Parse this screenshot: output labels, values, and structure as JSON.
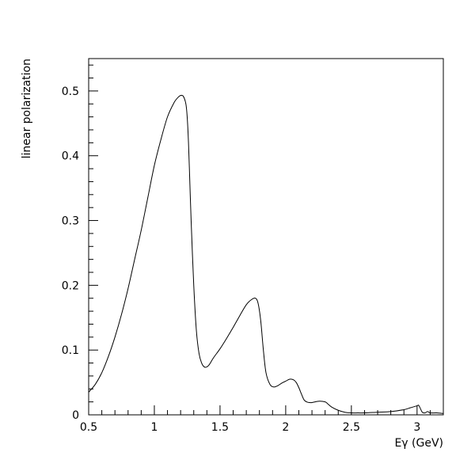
{
  "chart_data": {
    "type": "line",
    "title": "",
    "xlabel": "Eγ (GeV)",
    "ylabel": "linear polarization",
    "xlim": [
      0.5,
      3.2
    ],
    "ylim": [
      0,
      0.55
    ],
    "grid": false,
    "x_ticks": [
      0.5,
      1,
      1.5,
      2,
      2.5,
      3
    ],
    "x_tick_labels": [
      "0.5",
      "1",
      "1.5",
      "2",
      "2.5",
      "3"
    ],
    "y_ticks": [
      0,
      0.1,
      0.2,
      0.3,
      0.4,
      0.5
    ],
    "y_tick_labels": [
      "0",
      "0.1",
      "0.2",
      "0.3",
      "0.4",
      "0.5"
    ],
    "series": [
      {
        "x": [
          0.5,
          0.55,
          0.6,
          0.65,
          0.7,
          0.75,
          0.8,
          0.85,
          0.9,
          0.95,
          1.0,
          1.05,
          1.1,
          1.15,
          1.18,
          1.2,
          1.22,
          1.24,
          1.25,
          1.26,
          1.27,
          1.28,
          1.3,
          1.32,
          1.34,
          1.36,
          1.38,
          1.4,
          1.42,
          1.45,
          1.5,
          1.55,
          1.6,
          1.65,
          1.7,
          1.74,
          1.77,
          1.79,
          1.81,
          1.83,
          1.85,
          1.88,
          1.91,
          1.94,
          1.97,
          2.0,
          2.03,
          2.06,
          2.08,
          2.1,
          2.12,
          2.14,
          2.16,
          2.18,
          2.2,
          2.25,
          2.3,
          2.32,
          2.35,
          2.4,
          2.45,
          2.5,
          2.55,
          2.6,
          2.7,
          2.8,
          2.9,
          2.95,
          3.0,
          3.01,
          3.02,
          3.04,
          3.06,
          3.08,
          3.1,
          3.15,
          3.2
        ],
        "values": [
          0.035,
          0.047,
          0.065,
          0.09,
          0.12,
          0.155,
          0.195,
          0.24,
          0.285,
          0.335,
          0.385,
          0.425,
          0.46,
          0.482,
          0.49,
          0.493,
          0.492,
          0.48,
          0.46,
          0.42,
          0.36,
          0.3,
          0.2,
          0.13,
          0.095,
          0.08,
          0.074,
          0.074,
          0.078,
          0.088,
          0.102,
          0.118,
          0.135,
          0.153,
          0.17,
          0.178,
          0.18,
          0.172,
          0.145,
          0.1,
          0.065,
          0.047,
          0.043,
          0.045,
          0.049,
          0.052,
          0.055,
          0.054,
          0.05,
          0.042,
          0.032,
          0.023,
          0.02,
          0.019,
          0.019,
          0.021,
          0.02,
          0.017,
          0.012,
          0.007,
          0.004,
          0.003,
          0.003,
          0.003,
          0.004,
          0.005,
          0.008,
          0.011,
          0.014,
          0.015,
          0.012,
          0.004,
          0.003,
          0.005,
          0.003,
          0.003,
          0.002
        ]
      }
    ]
  }
}
